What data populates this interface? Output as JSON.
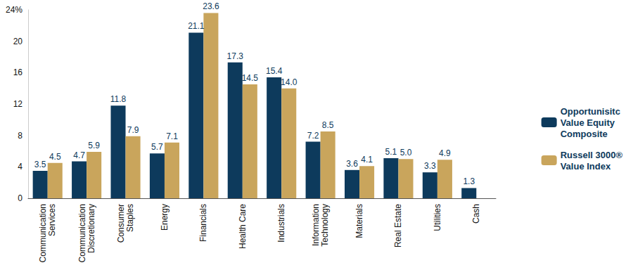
{
  "chart_data": {
    "type": "bar",
    "categories": [
      "Communication Services",
      "Communication Discretionary",
      "Consumer Staples",
      "Energy",
      "Financials",
      "Health Care",
      "Industrials",
      "Information Technology",
      "Materials",
      "Real Estate",
      "Utilities",
      "Cash"
    ],
    "series": [
      {
        "name": "Opportunisitc Value Equity Composite",
        "color": "#0d3a5c",
        "values": [
          3.5,
          4.7,
          11.8,
          5.7,
          21.1,
          17.3,
          15.4,
          7.2,
          3.6,
          5.1,
          3.3,
          1.3
        ],
        "value_labels": [
          "3.5",
          "4.7",
          "11.8",
          "5.7",
          "21.1",
          "17.3",
          "15.4",
          "7.2",
          "3.6",
          "5.1",
          "3.3",
          "1.3"
        ]
      },
      {
        "name": "Russell 3000® Value Index",
        "color": "#c9a55c",
        "values": [
          4.5,
          5.9,
          7.9,
          7.1,
          23.6,
          14.5,
          14.0,
          8.5,
          4.1,
          5.0,
          4.9,
          null
        ],
        "value_labels": [
          "4.5",
          "5.9",
          "7.9",
          "7.1",
          "23.6",
          "14.5",
          "14.0",
          "8.5",
          "4.1",
          "5.0",
          "4.9",
          null
        ]
      }
    ],
    "ylim": [
      0,
      24
    ],
    "yticks": [
      0,
      4,
      8,
      12,
      16,
      20,
      {
        "value": 24,
        "label": "24%"
      }
    ],
    "grid": false,
    "legend": "right",
    "data_labels": true
  }
}
